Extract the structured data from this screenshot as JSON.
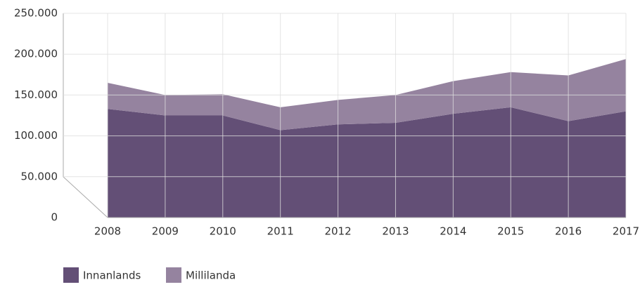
{
  "chart_data": {
    "type": "stacked_area",
    "categories": [
      "2008",
      "2009",
      "2010",
      "2011",
      "2012",
      "2013",
      "2014",
      "2015",
      "2016",
      "2017"
    ],
    "series": [
      {
        "name": "Innanlands",
        "color": "#634f76",
        "values": [
          133000,
          125000,
          125000,
          107000,
          114000,
          116000,
          127000,
          135000,
          118000,
          130000
        ]
      },
      {
        "name": "Millilanda",
        "color": "#95839f",
        "values": [
          32000,
          25000,
          26000,
          28000,
          30000,
          34000,
          40000,
          43000,
          56000,
          64000
        ]
      }
    ],
    "ylim": [
      0,
      250000
    ],
    "yticks": [
      0,
      {
        "value": 50000,
        "label": "50.000"
      },
      {
        "value": 100000,
        "label": "100.000"
      },
      {
        "value": 150000,
        "label": "150.000"
      },
      {
        "value": 200000,
        "label": "200.000"
      },
      {
        "value": 250000,
        "label": "250.000"
      }
    ],
    "grid": true
  }
}
